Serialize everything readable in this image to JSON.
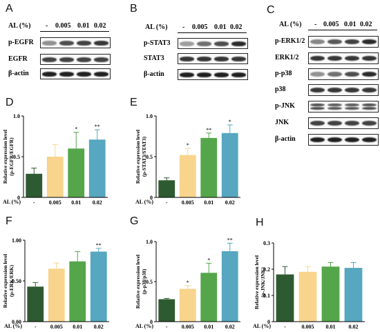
{
  "panel_letters": [
    "A",
    "B",
    "C",
    "D",
    "E",
    "F",
    "G",
    "H"
  ],
  "blots": {
    "treatment_header": "AL (%)",
    "groups": [
      "-",
      "0.005",
      "0.01",
      "0.02"
    ],
    "A": {
      "rows": [
        "p-EGFR",
        "EGFR",
        "β-actin"
      ]
    },
    "B": {
      "rows": [
        "p-STAT3",
        "STAT3",
        "β-actin"
      ]
    },
    "C": {
      "rows": [
        "p-ERK1/2",
        "ERK1/2",
        "p-p38",
        "p38",
        "p-JNK",
        "JNK",
        "β-actin"
      ]
    }
  },
  "colors": {
    "control": "#2e5a31",
    "low": "#f8d48d",
    "mid": "#55a64b",
    "high": "#56a7bf"
  },
  "chart_data": [
    {
      "panel": "D",
      "type": "bar",
      "categories": [
        "-",
        "0.005",
        "0.01",
        "0.02"
      ],
      "values": [
        0.29,
        0.5,
        0.6,
        0.71
      ],
      "errors": [
        0.07,
        0.15,
        0.2,
        0.12
      ],
      "significance": [
        "",
        "",
        "*",
        "**"
      ],
      "ylabel": "Relative expression level",
      "ylabel2": "(p-EGFR/EGFR)",
      "xlabel": "AL (%)",
      "ylim": [
        0,
        1.0
      ],
      "yticks": [
        0,
        0.5,
        1.0
      ],
      "ytick_labels": [
        "0",
        "0.5",
        "1.0"
      ]
    },
    {
      "panel": "E",
      "type": "bar",
      "categories": [
        "-",
        "0.005",
        "0.01",
        "0.02"
      ],
      "values": [
        0.21,
        0.52,
        0.73,
        0.79
      ],
      "errors": [
        0.03,
        0.08,
        0.06,
        0.1
      ],
      "significance": [
        "",
        "*",
        "**",
        "*"
      ],
      "ylabel": "Relative expression level",
      "ylabel2": "(p-STAT3/STAT3)",
      "xlabel": "AL (%)",
      "ylim": [
        0,
        1.0
      ],
      "yticks": [
        0,
        0.5,
        1.0
      ],
      "ytick_labels": [
        "0",
        "0.5",
        "1.0"
      ]
    },
    {
      "panel": "F",
      "type": "bar",
      "categories": [
        "-",
        "0.005",
        "0.01",
        "0.02"
      ],
      "values": [
        0.43,
        0.65,
        0.74,
        0.86
      ],
      "errors": [
        0.05,
        0.07,
        0.12,
        0.04
      ],
      "significance": [
        "",
        "",
        "",
        "**"
      ],
      "ylabel": "Relative expression level",
      "ylabel2": "(p-ERK/ERK)",
      "xlabel": "AL (%)",
      "ylim": [
        0,
        1.0
      ],
      "yticks": [
        0,
        0.5,
        1.0
      ],
      "ytick_labels": [
        "0.00",
        "0.50",
        "1.00"
      ]
    },
    {
      "panel": "G",
      "type": "bar",
      "categories": [
        "-",
        "0.005",
        "0.01",
        "0.02"
      ],
      "values": [
        0.28,
        0.41,
        0.61,
        0.88
      ],
      "errors": [
        0.01,
        0.04,
        0.12,
        0.1
      ],
      "significance": [
        "",
        "*",
        "*",
        "**"
      ],
      "ylabel": "Relative expression level",
      "ylabel2": "(p-p38/p38)",
      "xlabel": "AL (%)",
      "ylim": [
        0,
        1.0
      ],
      "yticks": [
        0,
        0.5,
        1.0
      ],
      "ytick_labels": [
        "0",
        "0.5",
        "1.0"
      ]
    },
    {
      "panel": "H",
      "type": "bar",
      "categories": [
        "-",
        "0.005",
        "0.01",
        "0.02"
      ],
      "values": [
        0.18,
        0.19,
        0.21,
        0.205
      ],
      "errors": [
        0.03,
        0.02,
        0.015,
        0.02
      ],
      "significance": [
        "",
        "",
        "",
        ""
      ],
      "ylabel": "Relative expression level",
      "ylabel2": "(p-JNK/JNK)",
      "xlabel": "AL (%)",
      "ylim": [
        0,
        0.3
      ],
      "yticks": [
        0,
        0.1,
        0.2,
        0.3
      ],
      "ytick_labels": [
        "0",
        "0.1",
        "0.2",
        "0.3"
      ]
    }
  ]
}
